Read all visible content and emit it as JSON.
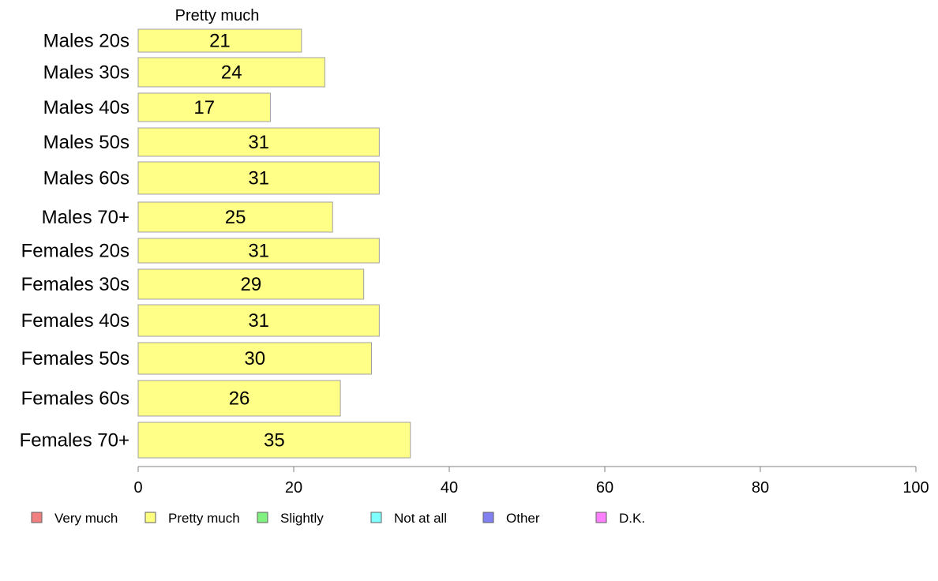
{
  "chart_data": {
    "type": "bar",
    "orientation": "horizontal",
    "title": "",
    "xlabel": "",
    "ylabel": "",
    "xlim": [
      0,
      100
    ],
    "xticks": [
      0,
      20,
      40,
      60,
      80,
      100
    ],
    "grid": false,
    "legend_position": "bottom",
    "shown_series": "Pretty much",
    "categories": [
      "Males 20s",
      "Males 30s",
      "Males 40s",
      "Males 50s",
      "Males 60s",
      "Males 70+",
      "Females 20s",
      "Females 30s",
      "Females 40s",
      "Females 50s",
      "Females 60s",
      "Females 70+"
    ],
    "series": [
      {
        "name": "Pretty much",
        "color": "#ffff88",
        "values": [
          21,
          24,
          17,
          31,
          31,
          25,
          31,
          29,
          31,
          30,
          26,
          35
        ]
      }
    ],
    "legend": [
      {
        "label": "Very much",
        "color": "#f08080"
      },
      {
        "label": "Pretty much",
        "color": "#ffff80"
      },
      {
        "label": "Slightly",
        "color": "#80f080"
      },
      {
        "label": "Not at all",
        "color": "#80ffff"
      },
      {
        "label": "Other",
        "color": "#8080f0"
      },
      {
        "label": "D.K.",
        "color": "#ff80ff"
      }
    ]
  }
}
